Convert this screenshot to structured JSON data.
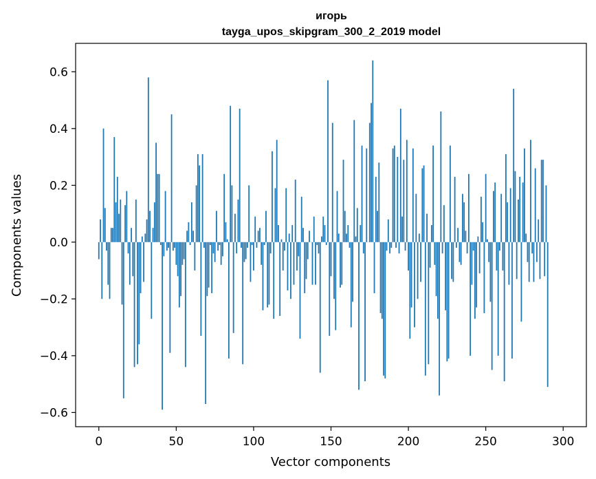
{
  "chart_data": {
    "type": "bar",
    "title_line1": "игорь",
    "title_line2": "tayga_upos_skipgram_300_2_2019 model",
    "xlabel": "Vector components",
    "ylabel": "Components values",
    "xlim": [
      -15,
      315
    ],
    "ylim": [
      -0.65,
      0.7
    ],
    "xticks": [
      0,
      50,
      100,
      150,
      200,
      250,
      300
    ],
    "xtick_labels": [
      "0",
      "50",
      "100",
      "150",
      "200",
      "250",
      "300"
    ],
    "yticks": [
      -0.6,
      -0.4,
      -0.2,
      0.0,
      0.2,
      0.4,
      0.6
    ],
    "ytick_labels": [
      "−0.6",
      "−0.4",
      "−0.2",
      "0.0",
      "0.2",
      "0.4",
      "0.6"
    ],
    "bar_color": "#1f77b4",
    "values": [
      -0.06,
      0.08,
      -0.2,
      0.4,
      0.12,
      -0.03,
      -0.15,
      -0.2,
      0.05,
      0.05,
      0.37,
      0.14,
      0.23,
      0.1,
      0.15,
      -0.22,
      -0.55,
      0.13,
      0.18,
      -0.04,
      -0.15,
      0.05,
      -0.12,
      -0.44,
      0.15,
      -0.43,
      -0.36,
      -0.18,
      0.02,
      -0.14,
      0.03,
      0.08,
      0.58,
      0.11,
      -0.27,
      0.05,
      0.14,
      0.35,
      0.24,
      0.24,
      -0.01,
      -0.59,
      -0.05,
      0.18,
      -0.03,
      -0.02,
      -0.39,
      0.45,
      -0.03,
      -0.02,
      -0.08,
      -0.12,
      -0.23,
      -0.19,
      -0.08,
      -0.06,
      -0.44,
      0.04,
      0.07,
      -0.01,
      0.14,
      0.04,
      -0.1,
      0.2,
      0.31,
      0.27,
      -0.33,
      0.31,
      -0.02,
      -0.57,
      -0.19,
      -0.16,
      -0.01,
      -0.18,
      -0.04,
      -0.07,
      0.11,
      -0.03,
      -0.01,
      -0.08,
      -0.05,
      0.24,
      0.07,
      0.01,
      -0.41,
      0.48,
      0.2,
      -0.32,
      0.1,
      -0.04,
      0.15,
      0.47,
      -0.02,
      -0.43,
      -0.07,
      -0.06,
      -0.02,
      0.2,
      -0.14,
      -0.01,
      -0.1,
      0.09,
      -0.02,
      0.04,
      0.05,
      -0.08,
      -0.24,
      -0.01,
      0.11,
      -0.23,
      -0.22,
      -0.04,
      0.32,
      -0.27,
      0.19,
      0.36,
      0.06,
      -0.26,
      0.01,
      -0.1,
      -0.03,
      0.19,
      -0.17,
      0.03,
      -0.2,
      0.06,
      -0.15,
      0.22,
      -0.1,
      -0.05,
      -0.34,
      0.16,
      0.05,
      -0.18,
      -0.13,
      -0.06,
      0.04,
      0.0,
      -0.15,
      0.09,
      -0.15,
      -0.01,
      -0.04,
      -0.46,
      0.02,
      0.09,
      0.06,
      -0.01,
      0.57,
      -0.33,
      -0.12,
      0.42,
      -0.2,
      -0.31,
      0.18,
      0.03,
      -0.16,
      -0.15,
      0.29,
      0.11,
      0.03,
      0.06,
      -0.02,
      -0.3,
      -0.21,
      0.43,
      0.02,
      0.12,
      -0.52,
      0.06,
      0.34,
      -0.04,
      -0.49,
      0.33,
      0.0,
      0.42,
      0.49,
      0.64,
      -0.18,
      0.23,
      0.11,
      0.28,
      -0.25,
      -0.27,
      -0.47,
      -0.48,
      -0.03,
      0.08,
      -0.04,
      -0.02,
      0.33,
      0.34,
      -0.02,
      0.3,
      -0.04,
      0.47,
      0.09,
      0.29,
      -0.03,
      0.36,
      -0.1,
      -0.34,
      -0.23,
      0.33,
      -0.3,
      0.17,
      -0.2,
      0.03,
      -0.14,
      0.26,
      0.27,
      -0.47,
      0.1,
      -0.43,
      -0.09,
      0.06,
      0.34,
      -0.08,
      -0.19,
      -0.27,
      -0.54,
      0.46,
      -0.04,
      0.13,
      -0.24,
      -0.42,
      -0.41,
      0.34,
      -0.13,
      -0.14,
      0.23,
      -0.02,
      0.05,
      -0.07,
      -0.08,
      0.17,
      0.14,
      0.04,
      -0.04,
      0.24,
      -0.4,
      -0.15,
      -0.03,
      -0.27,
      -0.23,
      0.02,
      -0.11,
      0.16,
      0.07,
      -0.25,
      0.24,
      0.01,
      -0.07,
      -0.21,
      -0.45,
      0.18,
      0.21,
      -0.1,
      -0.4,
      -0.03,
      0.17,
      -0.1,
      -0.49,
      0.31,
      0.14,
      -0.15,
      0.19,
      -0.41,
      0.54,
      0.25,
      -0.13,
      0.15,
      0.23,
      -0.28,
      0.21,
      0.33,
      0.03,
      -0.07,
      -0.14,
      0.36,
      -0.04,
      -0.14,
      0.26,
      -0.07,
      0.08,
      -0.13,
      0.29,
      0.29,
      -0.12,
      0.2,
      -0.51
    ]
  }
}
